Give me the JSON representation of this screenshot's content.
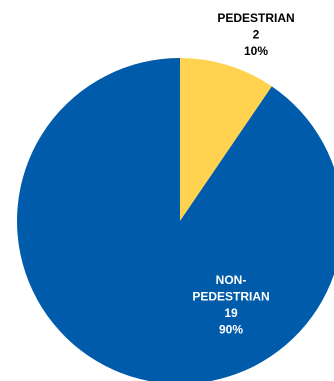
{
  "chart_data": {
    "type": "pie",
    "title": "",
    "start_angle_deg": 0,
    "direction": "clockwise",
    "slices": [
      {
        "label_lines": [
          "PEDESTRIAN"
        ],
        "value": 2,
        "percent": "10%",
        "color": "#ffd34f",
        "label_color": "#000000"
      },
      {
        "label_lines": [
          "NON-",
          "PEDESTRIAN"
        ],
        "value": 19,
        "percent": "90%",
        "color": "#005baa",
        "label_color": "#ffffff"
      }
    ]
  }
}
